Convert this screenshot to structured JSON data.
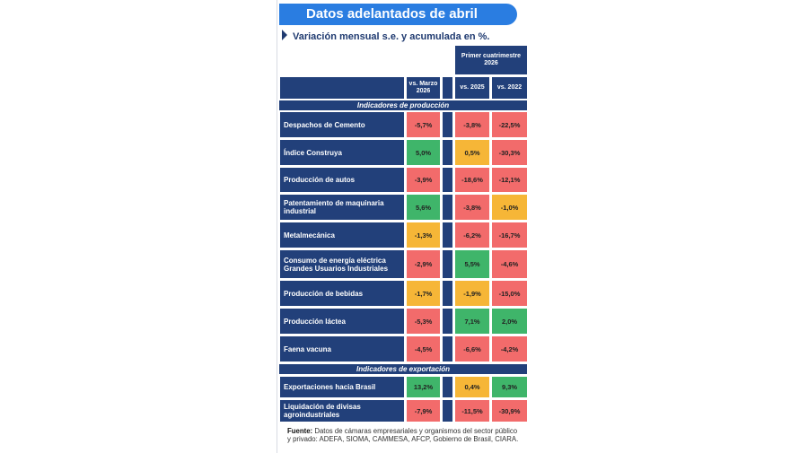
{
  "title": "Datos adelantados de abril",
  "subtitle": "Variación mensual s.e. y acumulada en %.",
  "headers": {
    "group": "Primer cuatrimestre 2026",
    "col1": "vs. Marzo 2026",
    "col2": "vs. 2025",
    "col3": "vs. 2022"
  },
  "sections": {
    "production": "Indicadores de producción",
    "export": "Indicadores de exportación"
  },
  "rows": [
    {
      "label": "Despachos de Cemento",
      "v1": "-5,7%",
      "c1": "red",
      "v2": "-3,8%",
      "c2": "red",
      "v3": "-22,5%",
      "c3": "red"
    },
    {
      "label": "Índice Construya",
      "v1": "5,0%",
      "c1": "green",
      "v2": "0,5%",
      "c2": "yellow",
      "v3": "-30,3%",
      "c3": "red"
    },
    {
      "label": "Producción de autos",
      "v1": "-3,9%",
      "c1": "red",
      "v2": "-18,6%",
      "c2": "red",
      "v3": "-12,1%",
      "c3": "red"
    },
    {
      "label": "Patentamiento de maquinaria industrial",
      "v1": "5,6%",
      "c1": "green",
      "v2": "-3,8%",
      "c2": "red",
      "v3": "-1,0%",
      "c3": "yellow"
    },
    {
      "label": "Metalmecánica",
      "v1": "-1,3%",
      "c1": "yellow",
      "v2": "-6,2%",
      "c2": "red",
      "v3": "-16,7%",
      "c3": "red"
    },
    {
      "label": "Consumo de energía eléctrica Grandes Usuarios Industriales",
      "v1": "-2,9%",
      "c1": "red",
      "v2": "5,5%",
      "c2": "green",
      "v3": "-4,6%",
      "c3": "red"
    },
    {
      "label": "Producción de bebidas",
      "v1": "-1,7%",
      "c1": "yellow",
      "v2": "-1,9%",
      "c2": "yellow",
      "v3": "-15,0%",
      "c3": "red"
    },
    {
      "label": "Producción láctea",
      "v1": "-5,3%",
      "c1": "red",
      "v2": "7,1%",
      "c2": "green",
      "v3": "2,0%",
      "c3": "green"
    },
    {
      "label": "Faena vacuna",
      "v1": "-4,5%",
      "c1": "red",
      "v2": "-6,6%",
      "c2": "red",
      "v3": "-4,2%",
      "c3": "red"
    },
    {
      "label": "Exportaciones hacia Brasil",
      "v1": "13,2%",
      "c1": "green",
      "v2": "0,4%",
      "c2": "yellow",
      "v3": "9,3%",
      "c3": "green"
    },
    {
      "label": "Liquidación de divisas agroindustriales",
      "v1": "-7,9%",
      "c1": "red",
      "v2": "-11,5%",
      "c2": "red",
      "v3": "-30,9%",
      "c3": "red"
    }
  ],
  "footer": {
    "label": "Fuente:",
    "text": "Datos de cámaras empresariales y organismos del sector público y privado: ADEFA, SIOMA, CAMMESA, AFCP, Gobierno de Brasil, CIARA."
  }
}
